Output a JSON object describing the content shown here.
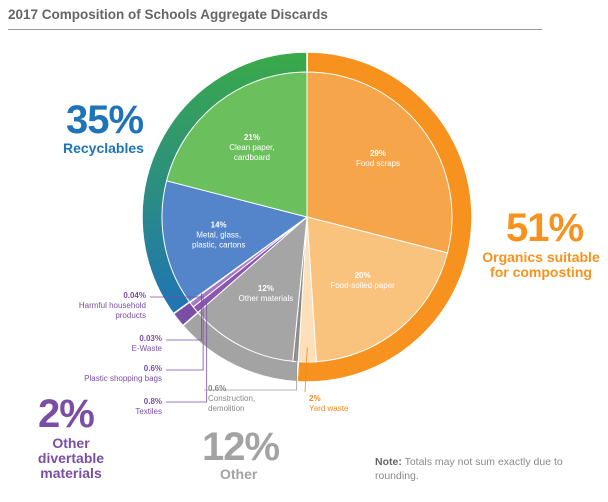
{
  "title": "2017 Composition of Schools Aggregate Discards",
  "chart_data": {
    "type": "pie",
    "title": "2017 Composition of Schools Aggregate Discards",
    "unit": "%",
    "slices": [
      {
        "key": "food_scraps",
        "value": 29,
        "pct_label": "29%",
        "label": "Food scraps",
        "color": "#f6a54a",
        "label_color": "#ffffff"
      },
      {
        "key": "food_soiled_paper",
        "value": 20,
        "pct_label": "20%",
        "label": "Food-soiled paper",
        "color": "#f9c27d",
        "label_color": "#ffffff"
      },
      {
        "key": "yard_waste",
        "value": 2,
        "pct_label": "2%",
        "label": "Yard waste",
        "color": "#fde0ba",
        "label_color": "#f08a1c"
      },
      {
        "key": "construction_demolition",
        "value": 0.6,
        "pct_label": "0.6%",
        "label": "Construction, demolition",
        "color": "#8c8c8c",
        "label_color": "#8a8a8a"
      },
      {
        "key": "other_materials",
        "value": 12,
        "pct_label": "12%",
        "label": "Other materials",
        "color": "#a5a5a5",
        "label_color": "#ffffff"
      },
      {
        "key": "textiles",
        "value": 0.8,
        "pct_label": "0.8%",
        "label": "Textiles",
        "color": "#8a57b0",
        "label_color": "#7a4ea6"
      },
      {
        "key": "plastic_shopping_bags",
        "value": 0.6,
        "pct_label": "0.6%",
        "label": "Plastic shopping bags",
        "color": "#a47ac6",
        "label_color": "#7a4ea6"
      },
      {
        "key": "e_waste",
        "value": 0.03,
        "pct_label": "0.03%",
        "label": "E-Waste",
        "color": "#6d3f9a",
        "label_color": "#7a4ea6"
      },
      {
        "key": "harmful_household_products",
        "value": 0.04,
        "pct_label": "0.04%",
        "label": "Harmful household products",
        "color": "#5e2f8a",
        "label_color": "#7a4ea6"
      },
      {
        "key": "metal_glass_plastic_cartons",
        "value": 14,
        "pct_label": "14%",
        "label": "Metal, glass, plastic, cartons",
        "color": "#5484c9",
        "label_color": "#ffffff"
      },
      {
        "key": "clean_paper_cardboard",
        "value": 21,
        "pct_label": "21%",
        "label": "Clean paper, cardboard",
        "color": "#6cbf5d",
        "label_color": "#ffffff"
      }
    ],
    "groups": [
      {
        "key": "organics",
        "value": 51,
        "pct_label": "51%",
        "label": "Organics suitable for composting",
        "color": "#f7921e",
        "members": [
          "food_scraps",
          "food_soiled_paper",
          "yard_waste"
        ]
      },
      {
        "key": "other",
        "value": 12,
        "pct_label": "12%",
        "label": "Other",
        "color": "#a3a3a3",
        "members": [
          "construction_demolition",
          "other_materials"
        ]
      },
      {
        "key": "divertable",
        "value": 2,
        "pct_label": "2%",
        "label": "Other divertable materials",
        "color": "#7a4ea6",
        "members": [
          "textiles",
          "plastic_shopping_bags",
          "e_waste",
          "harmful_household_products"
        ]
      },
      {
        "key": "recyclables",
        "value": 35,
        "pct_label": "35%",
        "label": "Recyclables",
        "color": "#1f73b7",
        "members": [
          "metal_glass_plastic_cartons",
          "clean_paper_cardboard"
        ]
      }
    ],
    "ring_colors": {
      "recyclables_start": "#3aaa48",
      "recyclables_end": "#1f73b7"
    }
  },
  "note": {
    "label": "Note:",
    "text": "Totals may not sum exactly due to rounding."
  }
}
